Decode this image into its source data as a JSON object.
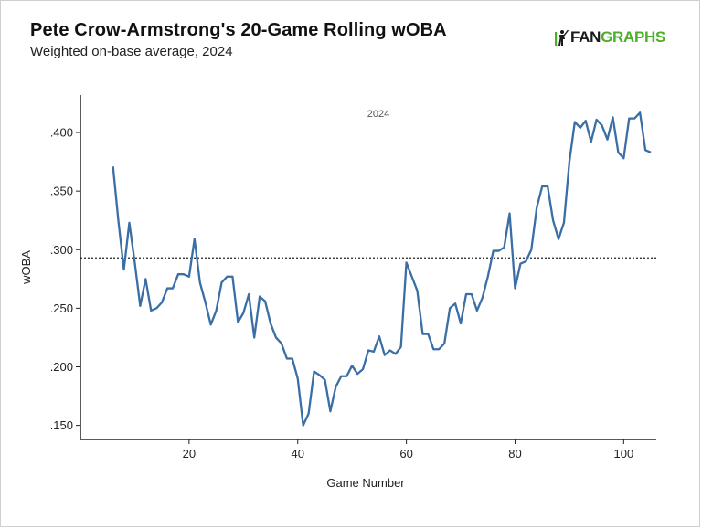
{
  "header": {
    "title": "Pete Crow-Armstrong's 20-Game Rolling wOBA",
    "subtitle": "Weighted on-base average, 2024"
  },
  "logo": {
    "part1": "FAN",
    "part2": "GRAPHS",
    "icon": "batter-icon"
  },
  "colors": {
    "line": "#3a6ea5",
    "reference": "#222222",
    "logo_green": "#4caf2a"
  },
  "chart_data": {
    "type": "line",
    "annotation": "2024",
    "xlabel": "Game Number",
    "ylabel": "wOBA",
    "xlim": [
      0,
      106
    ],
    "ylim": [
      0.138,
      0.432
    ],
    "x_ticks": [
      20,
      40,
      60,
      80,
      100
    ],
    "y_ticks": [
      0.15,
      0.2,
      0.25,
      0.3,
      0.35,
      0.4
    ],
    "y_tick_labels": [
      ".150",
      ".200",
      ".250",
      ".300",
      ".350",
      ".400"
    ],
    "reference_line": 0.293,
    "series": [
      {
        "x": [
          6,
          7,
          8,
          9,
          10,
          11,
          12,
          13,
          14,
          15,
          16,
          17,
          18,
          19,
          20,
          21,
          22,
          23,
          24,
          25,
          26,
          27,
          28,
          29,
          30,
          31,
          32,
          33,
          34,
          35,
          36,
          37,
          38,
          39,
          40,
          41,
          42,
          43,
          44,
          45,
          46,
          47,
          48,
          49,
          50,
          51,
          52,
          53,
          54,
          55,
          56,
          57,
          58,
          59,
          60,
          61,
          62,
          63,
          64,
          65,
          66,
          67,
          68,
          69,
          70,
          71,
          72,
          73,
          74,
          75,
          76,
          77,
          78,
          79,
          80,
          81,
          82,
          83,
          84,
          85,
          86,
          87,
          88,
          89,
          90,
          91,
          92,
          93,
          94,
          95,
          96,
          97,
          98,
          99,
          100,
          101,
          102,
          103,
          104,
          105
        ],
        "y": [
          0.371,
          0.324,
          0.283,
          0.323,
          0.289,
          0.252,
          0.275,
          0.248,
          0.25,
          0.255,
          0.267,
          0.267,
          0.279,
          0.279,
          0.277,
          0.309,
          0.272,
          0.255,
          0.236,
          0.248,
          0.272,
          0.277,
          0.277,
          0.238,
          0.246,
          0.262,
          0.225,
          0.26,
          0.256,
          0.237,
          0.225,
          0.22,
          0.207,
          0.207,
          0.19,
          0.15,
          0.16,
          0.196,
          0.193,
          0.189,
          0.162,
          0.183,
          0.192,
          0.192,
          0.201,
          0.194,
          0.198,
          0.214,
          0.213,
          0.226,
          0.21,
          0.214,
          0.211,
          0.217,
          0.289,
          0.277,
          0.265,
          0.228,
          0.228,
          0.215,
          0.215,
          0.22,
          0.25,
          0.254,
          0.237,
          0.262,
          0.262,
          0.248,
          0.259,
          0.277,
          0.299,
          0.299,
          0.302,
          0.331,
          0.267,
          0.288,
          0.29,
          0.3,
          0.336,
          0.354,
          0.354,
          0.325,
          0.309,
          0.323,
          0.375,
          0.409,
          0.404,
          0.41,
          0.392,
          0.411,
          0.406,
          0.394,
          0.413,
          0.383,
          0.378,
          0.412,
          0.412,
          0.417,
          0.385,
          0.383
        ]
      }
    ]
  }
}
